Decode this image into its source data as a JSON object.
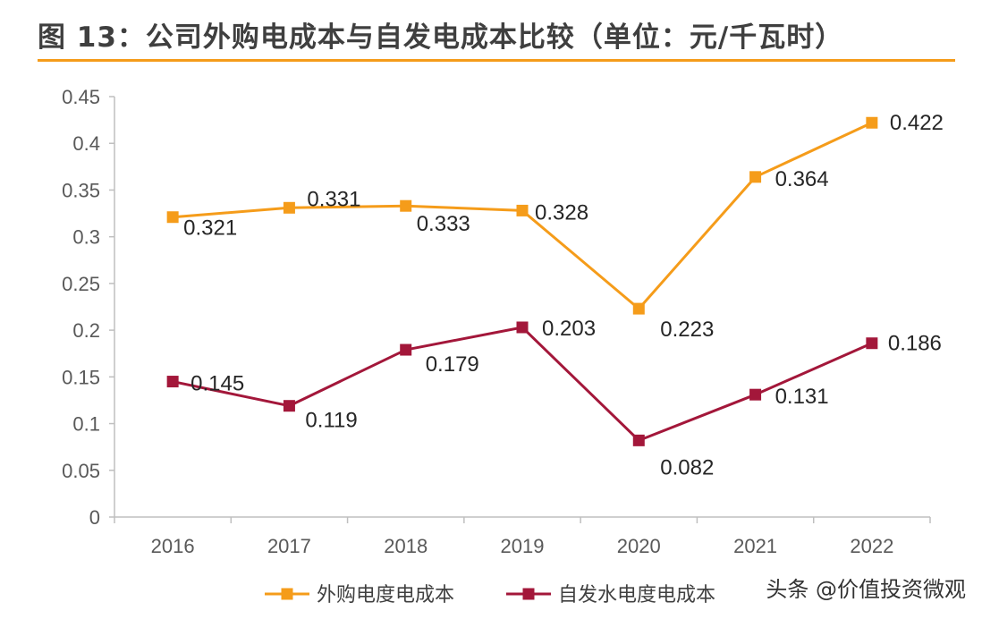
{
  "title": "图 13：公司外购电成本与自发电成本比较（单位：元/千瓦时）",
  "watermark": "头条 @价值投资微观",
  "chart_data": {
    "type": "line",
    "title": "图 13：公司外购电成本与自发电成本比较（单位：元/千瓦时）",
    "xlabel": "",
    "ylabel": "",
    "categories": [
      "2016",
      "2017",
      "2018",
      "2019",
      "2020",
      "2021",
      "2022"
    ],
    "ylim": [
      0,
      0.45
    ],
    "yticks": [
      "0",
      "0.05",
      "0.1",
      "0.15",
      "0.2",
      "0.25",
      "0.3",
      "0.35",
      "0.4",
      "0.45"
    ],
    "grid": false,
    "legend_position": "bottom",
    "series": [
      {
        "name": "外购电度电成本",
        "color": "#f59c1a",
        "marker": "square",
        "values": [
          0.321,
          0.331,
          0.333,
          0.328,
          0.223,
          0.364,
          0.422
        ],
        "labels": [
          "0.321",
          "0.331",
          "0.333",
          "0.328",
          "0.223",
          "0.364",
          "0.422"
        ]
      },
      {
        "name": "自发水电度电成本",
        "color": "#a3173a",
        "marker": "square",
        "values": [
          0.145,
          0.119,
          0.179,
          0.203,
          0.082,
          0.131,
          0.186
        ],
        "labels": [
          "0.145",
          "0.119",
          "0.179",
          "0.203",
          "0.082",
          "0.131",
          "0.186"
        ]
      }
    ]
  }
}
